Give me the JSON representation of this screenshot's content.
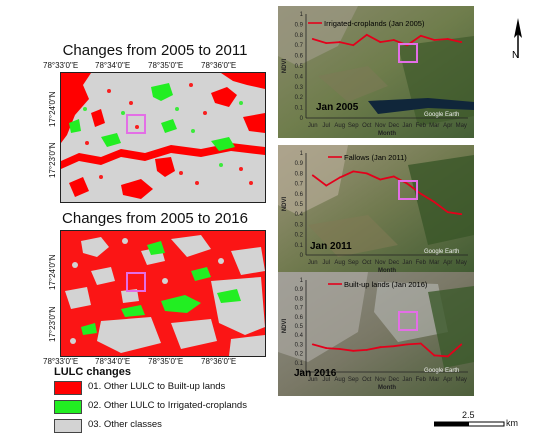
{
  "maps": [
    {
      "title": "Changes from 2005 to 2011",
      "x_ticks": [
        "78°33'0\"E",
        "78°34'0\"E",
        "78°35'0\"E",
        "78°36'0\"E"
      ],
      "y_ticks": [
        "17°24'0\"N",
        "17°23'0\"N"
      ]
    },
    {
      "title": "Changes from 2005 to 2016",
      "x_ticks": [
        "78°33'0\"E",
        "78°34'0\"E",
        "78°35'0\"E",
        "78°36'0\"E"
      ],
      "y_ticks": [
        "17°24'0\"N",
        "17°23'0\"N"
      ]
    }
  ],
  "legend": {
    "title": "LULC changes",
    "items": [
      {
        "label": "01. Other LULC to Built-up lands",
        "color": "#ff0000"
      },
      {
        "label": "02. Other LULC to Irrigated-croplands",
        "color": "#22ee22"
      },
      {
        "label": "03. Other classes",
        "color": "#d3d3d3"
      }
    ]
  },
  "colors": {
    "built_up": "#ff0000",
    "irrigated": "#22ee22",
    "other": "#d3d3d3",
    "box": "#e36ee6",
    "ndvi_line": "#e3001b"
  },
  "panels": [
    {
      "year_label": "Jan 2005",
      "series_label": "Irrigated-croplands (Jan 2005)",
      "watermark": "Google Earth",
      "y_label": "NDVI",
      "x_label": "Month",
      "x_ticks": [
        "Jun",
        "Jul",
        "Aug",
        "Sep",
        "Oct",
        "Nov",
        "Dec",
        "Jan",
        "Feb",
        "Mar",
        "Apr",
        "May"
      ],
      "y_ticks": [
        "0",
        "0.1",
        "0.2",
        "0.3",
        "0.4",
        "0.5",
        "0.6",
        "0.7",
        "0.8",
        "0.9",
        "1"
      ],
      "ndvi": [
        0.76,
        0.72,
        0.73,
        0.7,
        0.8,
        0.73,
        0.75,
        0.7,
        0.79,
        0.75,
        0.76,
        0.73
      ]
    },
    {
      "year_label": "Jan 2011",
      "series_label": "Fallows (Jan 2011)",
      "watermark": "Google Earth",
      "y_label": "NDVI",
      "x_label": "Month",
      "x_ticks": [
        "Jun",
        "Jul",
        "Aug",
        "Sep",
        "Oct",
        "Nov",
        "Dec",
        "Jan",
        "Feb",
        "Mar",
        "Apr",
        "May"
      ],
      "y_ticks": [
        "0",
        "0.1",
        "0.2",
        "0.3",
        "0.4",
        "0.5",
        "0.6",
        "0.7",
        "0.8",
        "0.9",
        "1"
      ],
      "ndvi": [
        0.78,
        0.68,
        0.76,
        0.82,
        0.8,
        0.74,
        0.77,
        0.7,
        0.6,
        0.52,
        0.42,
        0.4
      ]
    },
    {
      "year_label": "Jan 2016",
      "series_label": "Built-up lands (Jan 2016)",
      "watermark": "Google Earth",
      "y_label": "NDVI",
      "x_label": "Month",
      "x_ticks": [
        "Jun",
        "Jul",
        "Aug",
        "Sep",
        "Oct",
        "Nov",
        "Dec",
        "Jan",
        "Feb",
        "Mar",
        "Apr",
        "May"
      ],
      "y_ticks": [
        "0",
        "0.1",
        "0.2",
        "0.3",
        "0.4",
        "0.5",
        "0.6",
        "0.7",
        "0.8",
        "0.9",
        "1"
      ],
      "ndvi": [
        0.3,
        0.26,
        0.25,
        0.23,
        0.24,
        0.27,
        0.28,
        0.3,
        0.31,
        0.18,
        0.17,
        0.3
      ]
    }
  ],
  "scale": {
    "value": "2.5",
    "unit": "km"
  }
}
